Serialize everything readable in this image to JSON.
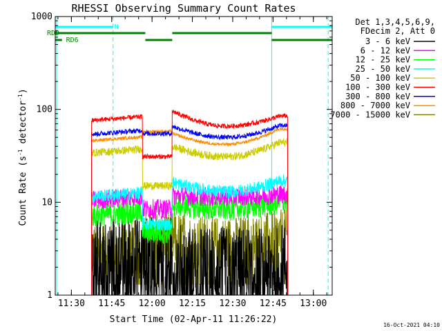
{
  "chart_data": {
    "type": "line",
    "title": "RHESSI Observing Summary Count Rates",
    "xlabel": "Start Time (02-Apr-11 11:26:22)",
    "ylabel": "Count Rate (s⁻¹ detector⁻¹)",
    "ylabel_main": "Count Rate (s",
    "ylabel_mid": " detector",
    "ylabel_end": ")",
    "ylabel_sup": "-1",
    "y_scale": "log",
    "ylim": [
      1,
      1000
    ],
    "xlim_minutes": [
      684,
      787
    ],
    "x_ticks": [
      {
        "label": "11:30",
        "min": 690
      },
      {
        "label": "11:45",
        "min": 705
      },
      {
        "label": "12:00",
        "min": 720
      },
      {
        "label": "12:15",
        "min": 735
      },
      {
        "label": "12:30",
        "min": 750
      },
      {
        "label": "12:45",
        "min": 765
      },
      {
        "label": "13:00",
        "min": 780
      }
    ],
    "y_ticks": [
      {
        "label": "1",
        "value": 1
      },
      {
        "label": "10",
        "value": 10
      },
      {
        "label": "100",
        "value": 100
      },
      {
        "label": "1000",
        "value": 1000
      }
    ],
    "legend_header": [
      "Det 1,3,4,5,6,9,",
      "FDecim 2, Att 0"
    ],
    "legend_position": "top-right",
    "timestamp": "16-Oct-2021 04:10",
    "data_start_min": 697.5,
    "data_end_min": 770.5,
    "segments": [
      {
        "start": 697.5,
        "end": 716.5
      },
      {
        "start": 716.5,
        "end": 727.5
      },
      {
        "start": 727.5,
        "end": 767.5
      },
      {
        "start": 767.5,
        "end": 770.5
      }
    ],
    "series": [
      {
        "name": "3 - 6 keV",
        "color": "#000000",
        "values": [
          2.5,
          2.6,
          2.2,
          2.0,
          2.2
        ],
        "noise": 0.5
      },
      {
        "name": "6 - 12 keV",
        "color": "#ff00ff",
        "values": [
          10.5,
          8.5,
          11.8,
          11.5,
          12.2
        ],
        "noise": 0.12
      },
      {
        "name": "12 - 25 keV",
        "color": "#00ff00",
        "values": [
          7.2,
          4.8,
          9.5,
          8.5,
          10.0
        ],
        "noise": 0.15
      },
      {
        "name": "25 - 50 keV",
        "color": "#00ffff",
        "values": [
          11.5,
          5.8,
          16.5,
          13.0,
          17.0
        ],
        "noise": 0.08
      },
      {
        "name": "50 - 100 keV",
        "color": "#cccc00",
        "values": [
          34,
          15,
          40,
          31,
          44
        ],
        "noise": 0.05
      },
      {
        "name": "100 - 300 keV",
        "color": "#ff0000",
        "values": [
          76,
          31,
          96,
          66,
          85
        ],
        "noise": 0.03
      },
      {
        "name": "300 - 800 keV",
        "color": "#0000ff",
        "values": [
          54,
          55,
          66,
          50,
          67
        ],
        "noise": 0.03
      },
      {
        "name": "800 - 7000 keV",
        "color": "#ff8c00",
        "values": [
          46,
          58,
          55,
          42,
          62
        ],
        "noise": 0.02
      },
      {
        "name": "7000 - 15000 keV",
        "color": "#808000",
        "values": [
          3.0,
          4.0,
          4.0,
          3.5,
          4.2
        ],
        "noise": 0.35
      }
    ],
    "flags": [
      {
        "name": "N",
        "color": "#00ffff",
        "y": 39,
        "label_min": 706,
        "intervals": [
          [
            684,
            705.5
          ],
          [
            764.5,
            787
          ]
        ]
      },
      {
        "name": "RDD",
        "color": "#008000",
        "y": 48,
        "label_min": 684,
        "intervals": [
          [
            684,
            717.5
          ],
          [
            727.5,
            764.5
          ]
        ]
      },
      {
        "name": "RD6",
        "color": "#008000",
        "y": 58,
        "label_min": 688,
        "intervals": [
          [
            684,
            686.5
          ],
          [
            717.5,
            727.5
          ],
          [
            764.5,
            787
          ]
        ]
      }
    ],
    "vertical_lines": [
      {
        "min": 684.5,
        "color": "#00ffff",
        "dash": false
      },
      {
        "min": 705.5,
        "color": "#00ffff",
        "dash": true
      },
      {
        "min": 764.5,
        "color": "#00ffff",
        "dash": false
      },
      {
        "min": 785.5,
        "color": "#00ffff",
        "dash": true
      }
    ]
  }
}
